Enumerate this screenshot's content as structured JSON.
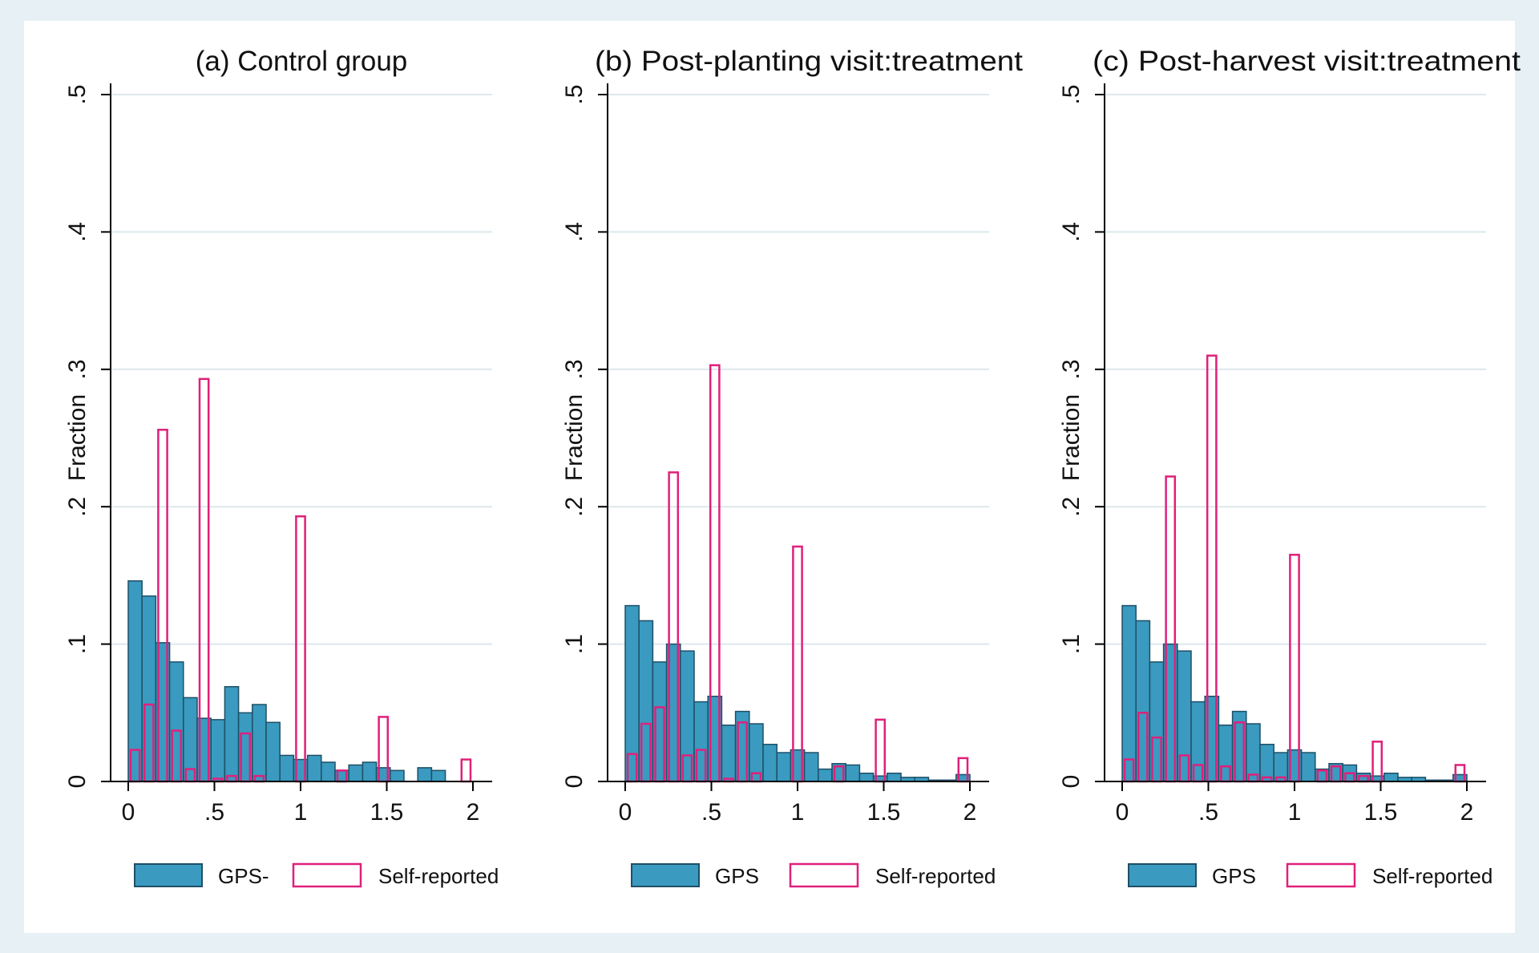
{
  "colors": {
    "gps_fill": "#3a9ac0",
    "gps_stroke": "#1f4f66",
    "self_stroke": "#e0207a",
    "grid": "#dde8ec",
    "axis": "#000000",
    "frame_bg": "#e7f0f4",
    "plot_bg": "#ffffff"
  },
  "chart_data": [
    {
      "type": "bar",
      "title": "(a) Control group",
      "xlabel": "",
      "ylabel": "Fraction",
      "xlim": [
        0,
        2
      ],
      "ylim": [
        0,
        0.5
      ],
      "x_ticks": [
        "0",
        ".5",
        "1",
        "1.5",
        "2"
      ],
      "y_ticks": [
        "0",
        ".1",
        ".2",
        ".3",
        ".4",
        ".5"
      ],
      "grid": true,
      "legend_position": "bottom",
      "legend": [
        "GPS-",
        "Self-reported"
      ],
      "series": [
        {
          "name": "GPS-",
          "style": "filled",
          "bin_width": 0.08,
          "x": [
            0.04,
            0.12,
            0.2,
            0.28,
            0.36,
            0.44,
            0.52,
            0.6,
            0.68,
            0.76,
            0.84,
            0.92,
            1.0,
            1.08,
            1.16,
            1.24,
            1.32,
            1.4,
            1.48,
            1.56,
            1.64,
            1.72,
            1.8,
            1.88,
            1.96
          ],
          "values": [
            0.146,
            0.135,
            0.101,
            0.087,
            0.061,
            0.046,
            0.045,
            0.069,
            0.05,
            0.056,
            0.043,
            0.019,
            0.016,
            0.019,
            0.014,
            0.008,
            0.012,
            0.014,
            0.01,
            0.008,
            0.0,
            0.01,
            0.008,
            0.0,
            0.0
          ]
        },
        {
          "name": "Self-reported",
          "style": "outline",
          "bin_width": 0.08,
          "x": [
            0.04,
            0.12,
            0.2,
            0.28,
            0.36,
            0.44,
            0.52,
            0.6,
            0.68,
            0.76,
            0.84,
            0.92,
            1.0,
            1.08,
            1.16,
            1.24,
            1.32,
            1.4,
            1.48,
            1.56,
            1.64,
            1.72,
            1.8,
            1.88,
            1.96
          ],
          "values": [
            0.023,
            0.056,
            0.256,
            0.037,
            0.009,
            0.293,
            0.002,
            0.004,
            0.035,
            0.004,
            0.0,
            0.0,
            0.193,
            0.0,
            0.0,
            0.008,
            0.0,
            0.0,
            0.047,
            0.0,
            0.0,
            0.0,
            0.0,
            0.0,
            0.016
          ]
        }
      ]
    },
    {
      "type": "bar",
      "title": "(b) Post-planting visit:treatment",
      "xlabel": "",
      "ylabel": "Fraction",
      "xlim": [
        0,
        2
      ],
      "ylim": [
        0,
        0.5
      ],
      "x_ticks": [
        "0",
        ".5",
        "1",
        "1.5",
        "2"
      ],
      "y_ticks": [
        "0",
        ".1",
        ".2",
        ".3",
        ".4",
        ".5"
      ],
      "grid": true,
      "legend_position": "bottom",
      "legend": [
        "GPS",
        "Self-reported"
      ],
      "series": [
        {
          "name": "GPS",
          "style": "filled",
          "bin_width": 0.08,
          "x": [
            0.04,
            0.12,
            0.2,
            0.28,
            0.36,
            0.44,
            0.52,
            0.6,
            0.68,
            0.76,
            0.84,
            0.92,
            1.0,
            1.08,
            1.16,
            1.24,
            1.32,
            1.4,
            1.48,
            1.56,
            1.64,
            1.72,
            1.8,
            1.88,
            1.96
          ],
          "values": [
            0.128,
            0.117,
            0.087,
            0.1,
            0.095,
            0.058,
            0.062,
            0.041,
            0.051,
            0.042,
            0.027,
            0.021,
            0.023,
            0.021,
            0.009,
            0.013,
            0.012,
            0.006,
            0.004,
            0.006,
            0.003,
            0.003,
            0.001,
            0.001,
            0.005
          ]
        },
        {
          "name": "Self-reported",
          "style": "outline",
          "bin_width": 0.08,
          "x": [
            0.04,
            0.12,
            0.2,
            0.28,
            0.36,
            0.44,
            0.52,
            0.6,
            0.68,
            0.76,
            0.84,
            0.92,
            1.0,
            1.08,
            1.16,
            1.24,
            1.32,
            1.4,
            1.48,
            1.56,
            1.64,
            1.72,
            1.8,
            1.88,
            1.96
          ],
          "values": [
            0.02,
            0.042,
            0.054,
            0.225,
            0.019,
            0.023,
            0.303,
            0.002,
            0.043,
            0.006,
            0.0,
            0.0,
            0.171,
            0.0,
            0.0,
            0.011,
            0.0,
            0.0,
            0.045,
            0.0,
            0.0,
            0.0,
            0.0,
            0.0,
            0.017
          ]
        }
      ]
    },
    {
      "type": "bar",
      "title": "(c) Post-harvest visit:treatment",
      "xlabel": "",
      "ylabel": "Fraction",
      "xlim": [
        0,
        2
      ],
      "ylim": [
        0,
        0.5
      ],
      "x_ticks": [
        "0",
        ".5",
        "1",
        "1.5",
        "2"
      ],
      "y_ticks": [
        "0",
        ".1",
        ".2",
        ".3",
        ".4",
        ".5"
      ],
      "grid": true,
      "legend_position": "bottom",
      "legend": [
        "GPS",
        "Self-reported"
      ],
      "series": [
        {
          "name": "GPS",
          "style": "filled",
          "bin_width": 0.08,
          "x": [
            0.04,
            0.12,
            0.2,
            0.28,
            0.36,
            0.44,
            0.52,
            0.6,
            0.68,
            0.76,
            0.84,
            0.92,
            1.0,
            1.08,
            1.16,
            1.24,
            1.32,
            1.4,
            1.48,
            1.56,
            1.64,
            1.72,
            1.8,
            1.88,
            1.96
          ],
          "values": [
            0.128,
            0.117,
            0.087,
            0.1,
            0.095,
            0.058,
            0.062,
            0.041,
            0.051,
            0.042,
            0.027,
            0.021,
            0.023,
            0.021,
            0.009,
            0.013,
            0.012,
            0.006,
            0.004,
            0.006,
            0.003,
            0.003,
            0.001,
            0.001,
            0.005
          ]
        },
        {
          "name": "Self-reported",
          "style": "outline",
          "bin_width": 0.08,
          "x": [
            0.04,
            0.12,
            0.2,
            0.28,
            0.36,
            0.44,
            0.52,
            0.6,
            0.68,
            0.76,
            0.84,
            0.92,
            1.0,
            1.08,
            1.16,
            1.24,
            1.32,
            1.4,
            1.48,
            1.56,
            1.64,
            1.72,
            1.8,
            1.88,
            1.96
          ],
          "values": [
            0.016,
            0.05,
            0.032,
            0.222,
            0.019,
            0.012,
            0.31,
            0.011,
            0.043,
            0.005,
            0.003,
            0.003,
            0.165,
            0.0,
            0.008,
            0.011,
            0.006,
            0.004,
            0.029,
            0.0,
            0.0,
            0.0,
            0.0,
            0.0,
            0.012
          ]
        }
      ]
    }
  ]
}
